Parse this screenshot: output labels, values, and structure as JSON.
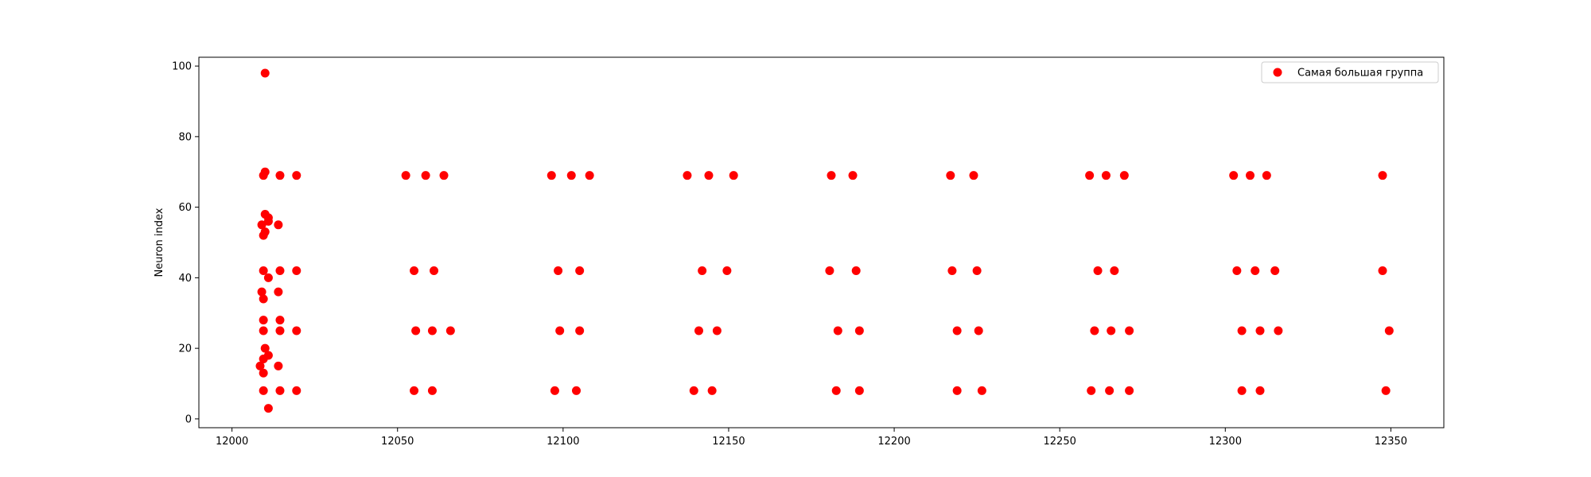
{
  "chart_data": {
    "type": "scatter",
    "title": "",
    "xlabel": "",
    "ylabel": "Neuron index",
    "xlim": [
      11990,
      12366
    ],
    "ylim": [
      -2.5,
      102.5
    ],
    "xticks": [
      12000,
      12050,
      12100,
      12150,
      12200,
      12250,
      12300,
      12350
    ],
    "yticks": [
      0,
      20,
      40,
      60,
      80,
      100
    ],
    "grid": false,
    "legend_position": "top-right",
    "series": [
      {
        "name": "Самая большая группа",
        "color": "#ff0000",
        "points": [
          [
            12010,
            98
          ],
          [
            12009.5,
            69
          ],
          [
            12010,
            70
          ],
          [
            12014.5,
            69
          ],
          [
            12019.5,
            69
          ],
          [
            12010,
            58
          ],
          [
            12011,
            57
          ],
          [
            12009,
            55
          ],
          [
            12011,
            56
          ],
          [
            12014,
            55
          ],
          [
            12010,
            53
          ],
          [
            12009.5,
            52
          ],
          [
            12009.5,
            42
          ],
          [
            12011,
            40
          ],
          [
            12014.5,
            42
          ],
          [
            12019.5,
            42
          ],
          [
            12009,
            36
          ],
          [
            12014,
            36
          ],
          [
            12009.5,
            34
          ],
          [
            12009.5,
            28
          ],
          [
            12014.5,
            28
          ],
          [
            12009.5,
            25
          ],
          [
            12014.5,
            25
          ],
          [
            12019.5,
            25
          ],
          [
            12010,
            20
          ],
          [
            12011,
            18
          ],
          [
            12009.5,
            17
          ],
          [
            12008.5,
            15
          ],
          [
            12014,
            15
          ],
          [
            12009.5,
            13
          ],
          [
            12009.5,
            8
          ],
          [
            12014.5,
            8
          ],
          [
            12019.5,
            8
          ],
          [
            12011,
            3
          ],
          [
            12052.5,
            69
          ],
          [
            12058.5,
            69
          ],
          [
            12064,
            69
          ],
          [
            12055,
            42
          ],
          [
            12061,
            42
          ],
          [
            12055.5,
            25
          ],
          [
            12060.5,
            25
          ],
          [
            12066,
            25
          ],
          [
            12055,
            8
          ],
          [
            12060.5,
            8
          ],
          [
            12096.5,
            69
          ],
          [
            12102.5,
            69
          ],
          [
            12108,
            69
          ],
          [
            12098.5,
            42
          ],
          [
            12105,
            42
          ],
          [
            12099,
            25
          ],
          [
            12105,
            25
          ],
          [
            12097.5,
            8
          ],
          [
            12104,
            8
          ],
          [
            12137.5,
            69
          ],
          [
            12144,
            69
          ],
          [
            12151.5,
            69
          ],
          [
            12142,
            42
          ],
          [
            12149.5,
            42
          ],
          [
            12141,
            25
          ],
          [
            12146.5,
            25
          ],
          [
            12139.5,
            8
          ],
          [
            12145,
            8
          ],
          [
            12181,
            69
          ],
          [
            12187.5,
            69
          ],
          [
            12180.5,
            42
          ],
          [
            12188.5,
            42
          ],
          [
            12183,
            25
          ],
          [
            12189.5,
            25
          ],
          [
            12182.5,
            8
          ],
          [
            12189.5,
            8
          ],
          [
            12217,
            69
          ],
          [
            12224,
            69
          ],
          [
            12217.5,
            42
          ],
          [
            12225,
            42
          ],
          [
            12219,
            25
          ],
          [
            12225.5,
            25
          ],
          [
            12219,
            8
          ],
          [
            12226.5,
            8
          ],
          [
            12259,
            69
          ],
          [
            12264,
            69
          ],
          [
            12269.5,
            69
          ],
          [
            12261.5,
            42
          ],
          [
            12266.5,
            42
          ],
          [
            12260.5,
            25
          ],
          [
            12265.5,
            25
          ],
          [
            12271,
            25
          ],
          [
            12259.5,
            8
          ],
          [
            12265,
            8
          ],
          [
            12271,
            8
          ],
          [
            12302.5,
            69
          ],
          [
            12307.5,
            69
          ],
          [
            12312.5,
            69
          ],
          [
            12303.5,
            42
          ],
          [
            12309,
            42
          ],
          [
            12315,
            42
          ],
          [
            12305,
            25
          ],
          [
            12310.5,
            25
          ],
          [
            12316,
            25
          ],
          [
            12305,
            8
          ],
          [
            12310.5,
            8
          ],
          [
            12347.5,
            69
          ],
          [
            12347.5,
            42
          ],
          [
            12349.5,
            25
          ],
          [
            12348.5,
            8
          ]
        ]
      }
    ]
  }
}
